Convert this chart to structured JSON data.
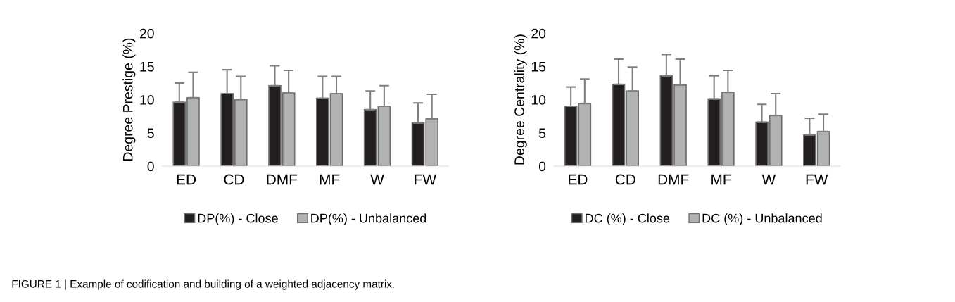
{
  "chart_data": [
    {
      "type": "bar",
      "ylabel": "Degree Prestige (%)",
      "categories": [
        "ED",
        "CD",
        "DMF",
        "MF",
        "W",
        "FW"
      ],
      "ylim": [
        0,
        20
      ],
      "yticks": [
        0,
        5,
        10,
        15,
        20
      ],
      "grid": false,
      "legend": "bottom",
      "series": [
        {
          "name": "DP(%) - Close",
          "color": "#231f20",
          "values": [
            9.6,
            10.9,
            12.1,
            10.2,
            8.5,
            6.5
          ],
          "errors": [
            [
              9.6,
              12.5
            ],
            [
              10.9,
              14.5
            ],
            [
              12.1,
              15.1
            ],
            [
              10.2,
              13.5
            ],
            [
              8.5,
              11.3
            ],
            [
              6.5,
              9.5
            ]
          ]
        },
        {
          "name": "DP(%) - Unbalanced",
          "color": "#b1b2b4",
          "values": [
            10.3,
            10.0,
            11.0,
            10.9,
            9.0,
            7.1
          ],
          "errors": [
            [
              10.3,
              14.1
            ],
            [
              10.0,
              13.5
            ],
            [
              11.0,
              14.4
            ],
            [
              10.9,
              13.5
            ],
            [
              9.0,
              12.1
            ],
            [
              7.1,
              10.8
            ]
          ]
        }
      ],
      "annotations": [
        "FIGURE 1 | Example of codification and building of a weighted adjacency matrix."
      ]
    },
    {
      "type": "bar",
      "ylabel": "Degree Centrality (%)",
      "categories": [
        "ED",
        "CD",
        "DMF",
        "MF",
        "W",
        "FW"
      ],
      "ylim": [
        0,
        20
      ],
      "yticks": [
        0,
        5,
        10,
        15,
        20
      ],
      "grid": false,
      "legend": "bottom",
      "series": [
        {
          "name": "DC (%) - Close",
          "color": "#231f20",
          "values": [
            9.0,
            12.3,
            13.6,
            10.1,
            6.6,
            4.7
          ],
          "errors": [
            [
              9.0,
              11.9
            ],
            [
              12.3,
              16.1
            ],
            [
              13.6,
              16.8
            ],
            [
              10.1,
              13.6
            ],
            [
              6.6,
              9.3
            ],
            [
              4.7,
              7.2
            ]
          ]
        },
        {
          "name": "DC (%) - Unbalanced",
          "color": "#b1b2b4",
          "values": [
            9.4,
            11.3,
            12.2,
            11.1,
            7.6,
            5.2
          ],
          "errors": [
            [
              9.4,
              13.1
            ],
            [
              11.3,
              14.9
            ],
            [
              12.2,
              16.1
            ],
            [
              11.1,
              14.4
            ],
            [
              7.6,
              10.9
            ],
            [
              5.2,
              7.8
            ]
          ]
        }
      ]
    }
  ]
}
